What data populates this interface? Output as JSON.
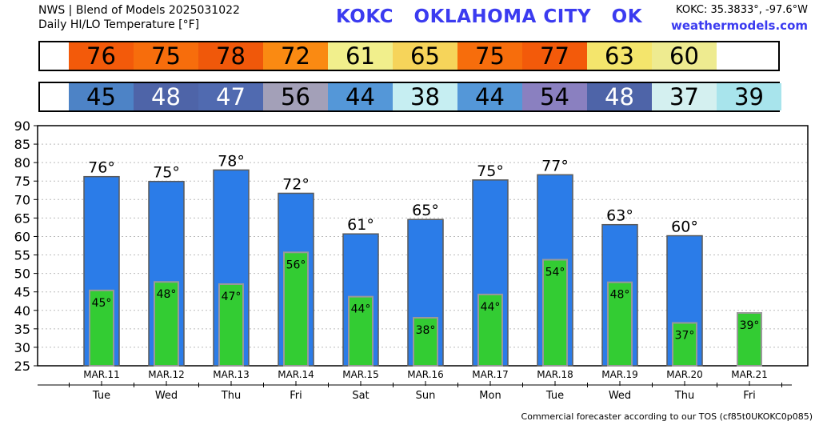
{
  "header": {
    "line1": "NWS | Blend of Models 2025031022",
    "line2": "Daily HI/LO Temperature [°F]",
    "title": "KOKC   OKLAHOMA CITY   OK",
    "coords": "KOKC: 35.3833°, -97.6°W",
    "site": "weathermodels.com"
  },
  "footer": "Commercial forecaster according to our TOS (cf85t0UKOKC0p085)",
  "colors": {
    "high_bar": "#2b7ce8",
    "low_bar": "#33cc33",
    "title": "#3b3bf0"
  },
  "hi_strip": [
    {
      "value": "76",
      "color": "#f35a0a"
    },
    {
      "value": "75",
      "color": "#f76d0c"
    },
    {
      "value": "78",
      "color": "#f0580a"
    },
    {
      "value": "72",
      "color": "#fa8a12"
    },
    {
      "value": "61",
      "color": "#f1ef8c"
    },
    {
      "value": "65",
      "color": "#f6d45a"
    },
    {
      "value": "75",
      "color": "#f76d0c"
    },
    {
      "value": "77",
      "color": "#f35a0a"
    },
    {
      "value": "63",
      "color": "#f4e56c"
    },
    {
      "value": "60",
      "color": "#eeeb90"
    }
  ],
  "lo_strip": [
    {
      "value": "45",
      "color": "#4d83c6",
      "text_color": "#000000"
    },
    {
      "value": "48",
      "color": "#4e64a8",
      "text_color": "#ffffff"
    },
    {
      "value": "47",
      "color": "#506ab0",
      "text_color": "#ffffff"
    },
    {
      "value": "56",
      "color": "#a3a0b8",
      "text_color": "#000000"
    },
    {
      "value": "44",
      "color": "#5497d8",
      "text_color": "#000000"
    },
    {
      "value": "38",
      "color": "#c6eef2",
      "text_color": "#000000"
    },
    {
      "value": "44",
      "color": "#5497d8",
      "text_color": "#000000"
    },
    {
      "value": "54",
      "color": "#8a80c0",
      "text_color": "#000000"
    },
    {
      "value": "48",
      "color": "#4e64a8",
      "text_color": "#ffffff"
    },
    {
      "value": "37",
      "color": "#d4f0f0",
      "text_color": "#000000"
    },
    {
      "value": "39",
      "color": "#a8e4ec",
      "text_color": "#000000"
    }
  ],
  "chart_data": {
    "type": "bar",
    "title": "Daily HI/LO Temperature [°F]",
    "xlabel": "",
    "ylabel": "",
    "ylim": [
      25,
      90
    ],
    "yticks": [
      25,
      30,
      35,
      40,
      45,
      50,
      55,
      60,
      65,
      70,
      75,
      80,
      85,
      90
    ],
    "grid": true,
    "categories": [
      "MAR.11",
      "MAR.12",
      "MAR.13",
      "MAR.14",
      "MAR.15",
      "MAR.16",
      "MAR.17",
      "MAR.18",
      "MAR.19",
      "MAR.20",
      "MAR.21"
    ],
    "days": [
      "Tue",
      "Wed",
      "Thu",
      "Fri",
      "Sat",
      "Sun",
      "Mon",
      "Tue",
      "Wed",
      "Thu",
      "Fri"
    ],
    "series": [
      {
        "values": [
          76.2,
          74.9,
          78.0,
          71.7,
          60.7,
          64.6,
          75.3,
          76.7,
          63.2,
          60.2,
          null
        ],
        "labels": [
          "76°",
          "75°",
          "78°",
          "72°",
          "61°",
          "65°",
          "75°",
          "77°",
          "63°",
          "60°",
          ""
        ]
      },
      {
        "values": [
          45.4,
          47.7,
          47.1,
          55.7,
          43.7,
          38.0,
          44.3,
          53.7,
          47.6,
          36.6,
          39.3
        ],
        "labels": [
          "45°",
          "48°",
          "47°",
          "56°",
          "44°",
          "38°",
          "44°",
          "54°",
          "48°",
          "37°",
          "39°"
        ]
      }
    ]
  }
}
